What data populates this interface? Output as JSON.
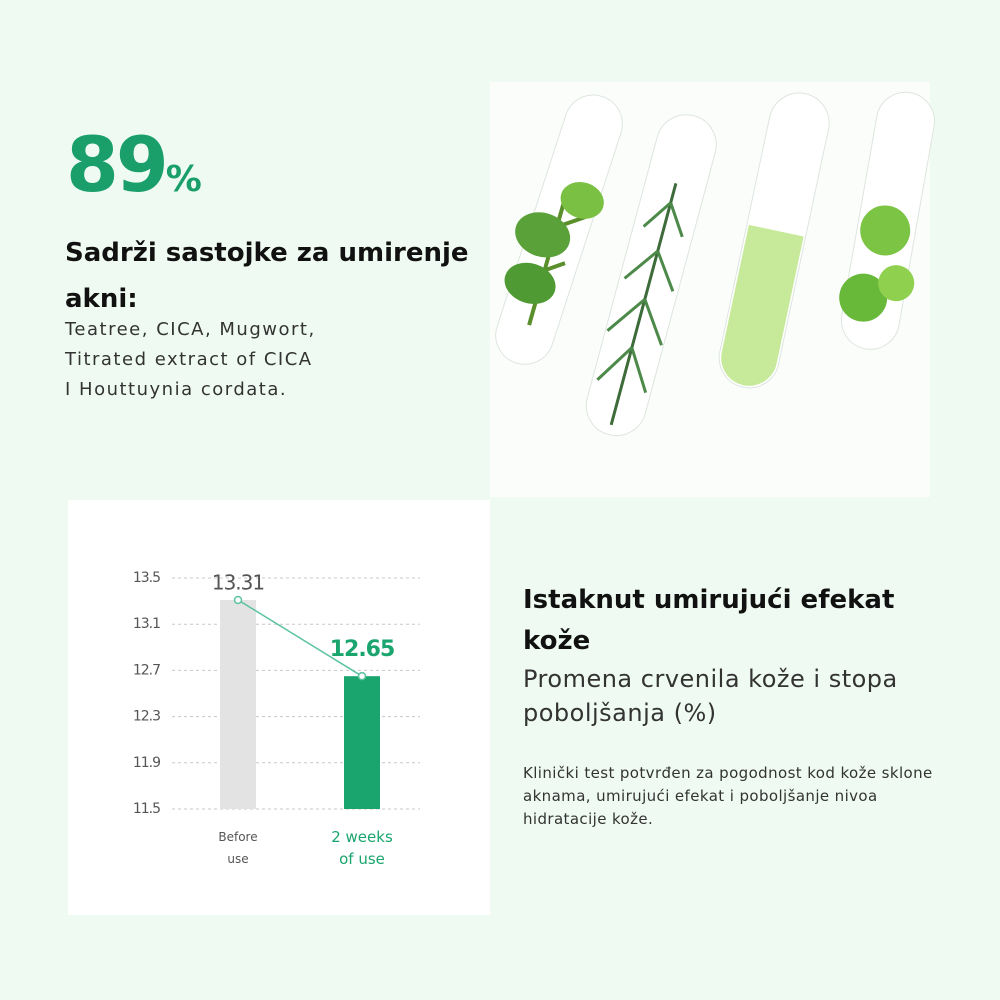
{
  "headline": {
    "number": "89",
    "unit": "%"
  },
  "title": "Sadrži sastojke za umirenje akni:",
  "ingredients": [
    "Teatree, CICA, Mugwort,",
    "Titrated extract of CICA",
    "I Houttuynia cordata."
  ],
  "chart_data": {
    "type": "bar",
    "categories": [
      "Before use",
      "2 weeks of use"
    ],
    "values": [
      13.31,
      12.65
    ],
    "colors": [
      "#e3e3e3",
      "#1aa56e"
    ],
    "label_colors": [
      "#555555",
      "#1aa56e"
    ],
    "ylim": [
      11.5,
      13.5
    ],
    "yticks": [
      11.5,
      11.9,
      12.3,
      12.7,
      13.1,
      13.5
    ],
    "grid": true,
    "line_color": "#5cc3a0"
  },
  "section": {
    "title": "Istaknut umirujući efekat kože",
    "subtitle": "Promena crvenila kože i stopa poboljšanja (%)",
    "description": "Klinički test potvrđen za pogodnost kod kože sklone aknama, umirujući efekat i poboljšanje nivoa hidratacije kože."
  }
}
